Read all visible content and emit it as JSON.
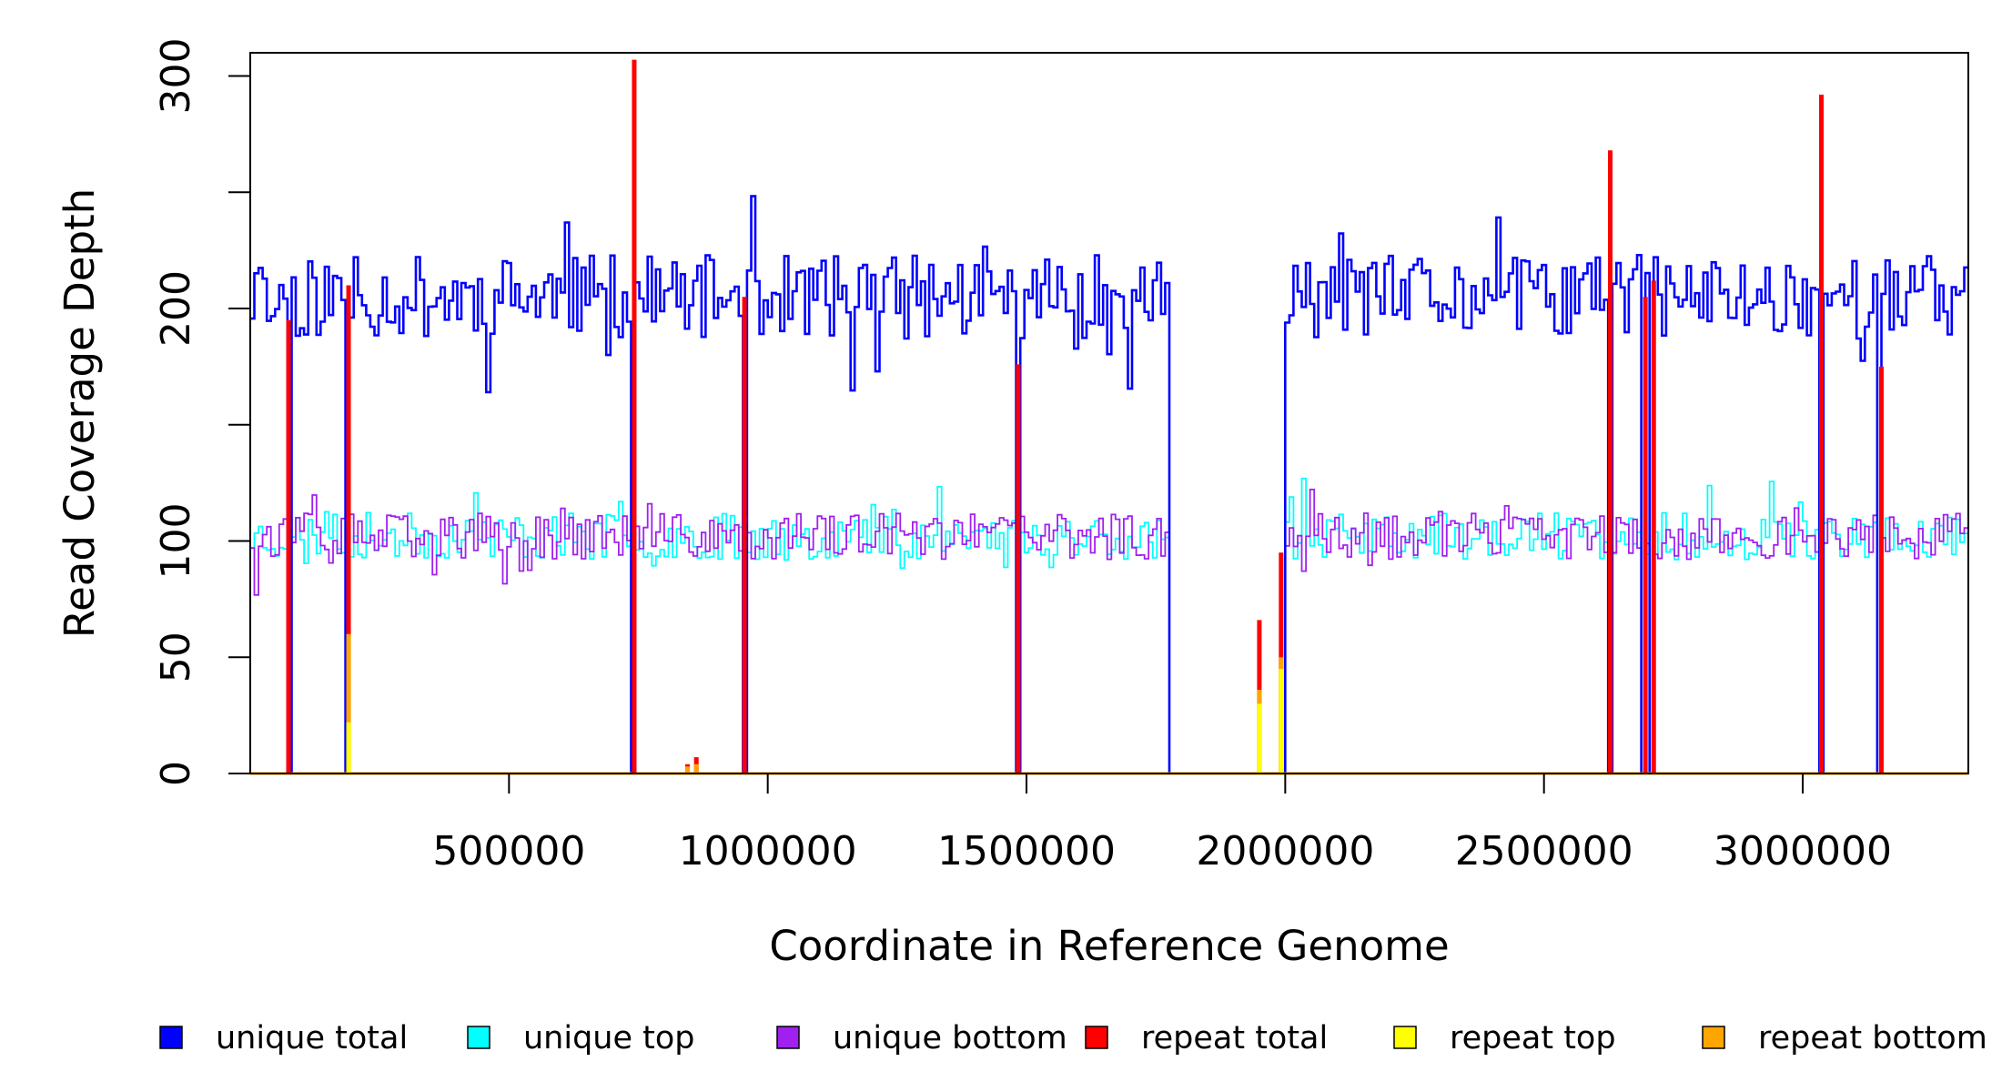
{
  "chart_data": {
    "type": "line",
    "xlabel": "Coordinate in Reference Genome",
    "ylabel": "Read Coverage Depth",
    "xlim": [
      0,
      3320000
    ],
    "ylim": [
      0,
      310
    ],
    "x_ticks": [
      500000,
      1000000,
      1500000,
      2000000,
      2500000,
      3000000
    ],
    "x_tick_labels": [
      "500000",
      "1000000",
      "1500000",
      "2000000",
      "2500000",
      "3000000"
    ],
    "y_ticks": [
      0,
      50,
      100,
      150,
      200,
      250,
      300
    ],
    "y_tick_labels": [
      "0",
      "50",
      "100",
      "",
      "200",
      "",
      "300"
    ],
    "bin_size": 8000,
    "gaps": [
      [
        70000,
        78000
      ],
      [
        188000,
        194000
      ],
      [
        740000,
        746000
      ],
      [
        952000,
        960000
      ],
      [
        1480000,
        1488000
      ],
      [
        1778000,
        1998000
      ],
      [
        2624000,
        2632000
      ],
      [
        2692000,
        2700000
      ],
      [
        2708000,
        2716000
      ],
      [
        3032000,
        3040000
      ],
      [
        3148000,
        3156000
      ]
    ],
    "low_region": {
      "range": [
        1778000,
        1998000
      ],
      "value": 0
    },
    "series": [
      {
        "name": "unique total",
        "color": "#0000FF",
        "baseline": 205,
        "amplitude": 18,
        "seed": 11
      },
      {
        "name": "unique top",
        "color": "#00FFFF",
        "baseline": 102,
        "amplitude": 10,
        "seed": 23
      },
      {
        "name": "unique bottom",
        "color": "#A020F0",
        "baseline": 102,
        "amplitude": 10,
        "seed": 37
      },
      {
        "name": "repeat total",
        "color": "#FF0000",
        "spikes": [
          [
            74000,
            195
          ],
          [
            190000,
            210
          ],
          [
            742000,
            307
          ],
          [
            845000,
            4
          ],
          [
            862000,
            7
          ],
          [
            955000,
            205
          ],
          [
            1484000,
            176
          ],
          [
            1950000,
            66
          ],
          [
            1992000,
            95
          ],
          [
            2628000,
            268
          ],
          [
            2696000,
            205
          ],
          [
            2712000,
            212
          ],
          [
            3036000,
            292
          ],
          [
            3152000,
            175
          ]
        ]
      },
      {
        "name": "repeat top",
        "color": "#FFFF00",
        "spikes": [
          [
            190000,
            22
          ],
          [
            1950000,
            30
          ],
          [
            1992000,
            45
          ]
        ]
      },
      {
        "name": "repeat bottom",
        "color": "#FFA500",
        "spikes": [
          [
            190000,
            60
          ],
          [
            845000,
            3
          ],
          [
            862000,
            4
          ],
          [
            1950000,
            36
          ],
          [
            1992000,
            50
          ]
        ]
      }
    ],
    "legend": {
      "position": "bottom",
      "items": [
        {
          "label": "unique total",
          "color": "#0000FF"
        },
        {
          "label": "unique top",
          "color": "#00FFFF"
        },
        {
          "label": "unique bottom",
          "color": "#A020F0"
        },
        {
          "label": "repeat total",
          "color": "#FF0000"
        },
        {
          "label": "repeat top",
          "color": "#FFFF00"
        },
        {
          "label": "repeat bottom",
          "color": "#FFA500"
        }
      ]
    }
  }
}
